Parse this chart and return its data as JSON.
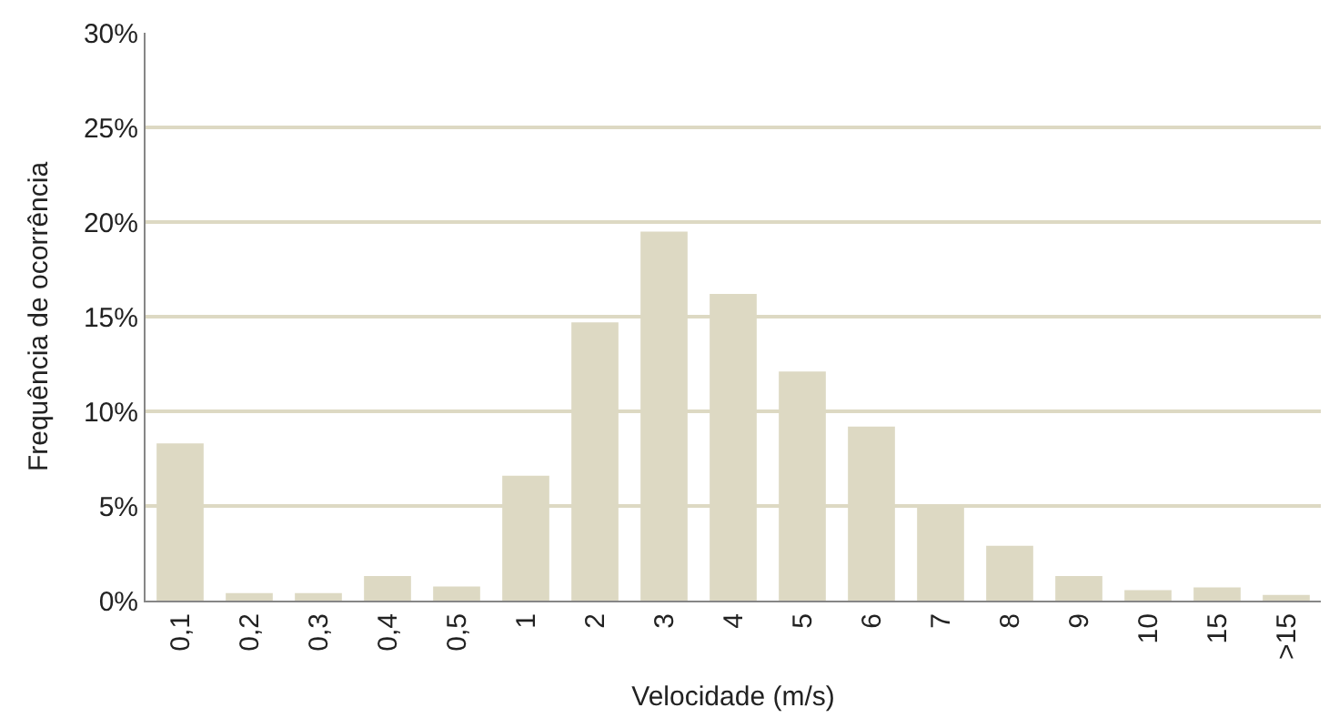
{
  "chart_data": {
    "type": "bar",
    "xlabel": "Velocidade (m/s)",
    "ylabel": "Frequência de ocorrência",
    "categories": [
      "0,1",
      "0,2",
      "0,3",
      "0,4",
      "0,5",
      "1",
      "2",
      "3",
      "4",
      "5",
      "6",
      "7",
      "8",
      "9",
      "10",
      "15",
      ">15"
    ],
    "values": [
      8.3,
      0.4,
      0.4,
      1.3,
      0.75,
      6.6,
      14.7,
      19.5,
      16.2,
      12.1,
      9.2,
      5.0,
      2.9,
      1.3,
      0.55,
      0.7,
      0.3
    ],
    "color": "#ddd9c3",
    "ylim": [
      0,
      30
    ],
    "yticks": [
      {
        "value": 0,
        "label": "0%"
      },
      {
        "value": 5,
        "label": "5%"
      },
      {
        "value": 10,
        "label": "10%"
      },
      {
        "value": 15,
        "label": "15%"
      },
      {
        "value": 20,
        "label": "20%"
      },
      {
        "value": 25,
        "label": "25%"
      },
      {
        "value": 30,
        "label": "30%"
      }
    ],
    "grid": "y",
    "legend": false
  }
}
